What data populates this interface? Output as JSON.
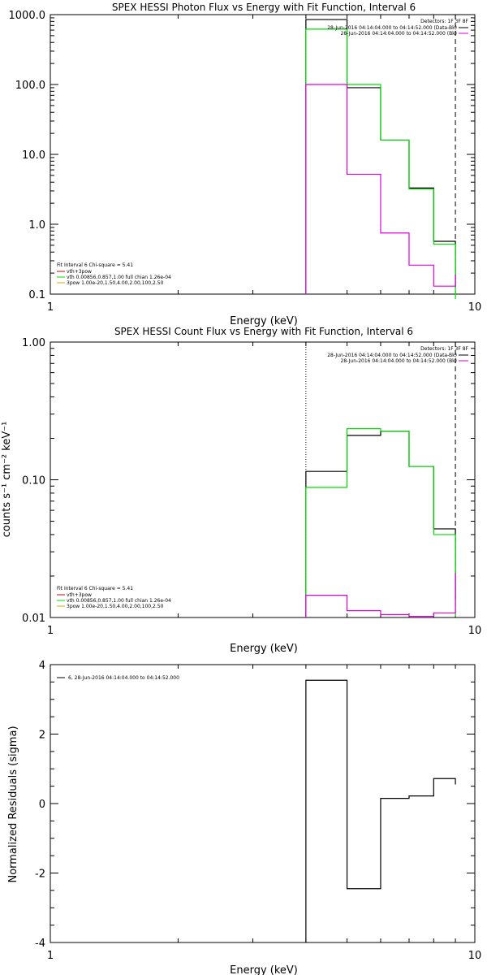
{
  "chart_data": [
    {
      "type": "line",
      "title": "SPEX HESSI Photon Flux vs Energy with Fit Function, Interval 6",
      "xlabel": "Energy (keV)",
      "ylabel": "",
      "xscale": "log",
      "yscale": "log",
      "xlim": [
        1,
        10
      ],
      "ylim": [
        0.1,
        1000
      ],
      "xticks": [
        "1",
        "10"
      ],
      "yticks": [
        "0.1",
        "1.0",
        "10.0",
        "100.0",
        "1000.0"
      ],
      "step_edges": [
        4,
        5,
        6,
        7,
        8,
        9
      ],
      "series": [
        {
          "name": "",
          "color": "#000000",
          "values": [
            850,
            90,
            16,
            3.3,
            0.57,
            0.12
          ]
        },
        {
          "name": "vth+3pow",
          "color": "#00dd00",
          "values": [
            620,
            100,
            16,
            3.2,
            0.52,
            0.085
          ]
        },
        {
          "name": "",
          "color": "#dd00dd",
          "values": [
            100,
            5.2,
            0.75,
            0.26,
            0.13,
            0.19
          ]
        }
      ],
      "vlines": [
        {
          "x": 4,
          "style": "dotted"
        },
        {
          "x": 9,
          "style": "dashed"
        }
      ],
      "legend_right": {
        "header": "Detectors: 1F 3F 8F",
        "entries": [
          {
            "text": "28-Jun-2016 04:14:04.000 to 04:14:52.000 (Data-Bk)",
            "color": "#000000"
          },
          {
            "text": "28-Jun-2016 04:14:04.000 to 04:14:52.000 (Bk)",
            "color": "#dd00dd"
          }
        ]
      },
      "legend_left": {
        "header": "Fit Interval  6    Chi-square = 5.41",
        "entries": [
          {
            "text": "vth+3pow",
            "color": "#dd0000"
          },
          {
            "text": "vth 0.00856,0.857,1.00  full chian 1.26e-04",
            "color": "#00dd00"
          },
          {
            "text": "3pow 1.00e-20,1.50,4.00,2.00,100,2.50",
            "color": "#ddaa00"
          }
        ]
      }
    },
    {
      "type": "line",
      "title": "SPEX HESSI Count Flux vs Energy with Fit Function, Interval 6",
      "xlabel": "Energy (keV)",
      "ylabel": "counts s⁻¹ cm⁻² keV⁻¹",
      "xscale": "log",
      "yscale": "log",
      "xlim": [
        1,
        10
      ],
      "ylim": [
        0.01,
        1
      ],
      "xticks": [
        "1",
        "10"
      ],
      "yticks": [
        "0.01",
        "0.10",
        "1.00"
      ],
      "step_edges": [
        4,
        5,
        6,
        7,
        8,
        9
      ],
      "series": [
        {
          "name": "",
          "color": "#000000",
          "values": [
            0.115,
            0.21,
            0.225,
            0.125,
            0.044,
            0.0135
          ]
        },
        {
          "name": "vth+3pow",
          "color": "#00dd00",
          "values": [
            0.088,
            0.235,
            0.225,
            0.125,
            0.04,
            0.0102
          ]
        },
        {
          "name": "",
          "color": "#dd00dd",
          "values": [
            0.0145,
            0.0112,
            0.0105,
            0.0102,
            0.0108,
            0.021
          ]
        }
      ],
      "vlines": [
        {
          "x": 4,
          "style": "dotted"
        },
        {
          "x": 9,
          "style": "dashed"
        }
      ],
      "legend_right": {
        "header": "Detectors: 1F 3F 8F",
        "entries": [
          {
            "text": "28-Jun-2016 04:14:04.000 to 04:14:52.000 (Data-Bk)",
            "color": "#000000"
          },
          {
            "text": "28-Jun-2016 04:14:04.000 to 04:14:52.000 (Bk)",
            "color": "#dd00dd"
          }
        ]
      },
      "legend_left": {
        "header": "Fit Interval  6    Chi-square = 5.41",
        "entries": [
          {
            "text": "vth+3pow",
            "color": "#dd0000"
          },
          {
            "text": "vth 0.00856,0.857,1.00  full chian 1.26e-04",
            "color": "#00dd00"
          },
          {
            "text": "3pow 1.00e-20,1.50,4.00,2.00,100,2.50",
            "color": "#ddaa00"
          }
        ]
      }
    },
    {
      "type": "line",
      "title": "",
      "xlabel": "Energy (keV)",
      "ylabel": "Normalized Residuals (sigma)",
      "xscale": "log",
      "yscale": "linear",
      "xlim": [
        1,
        10
      ],
      "ylim": [
        -4,
        4
      ],
      "xticks": [
        "1",
        "10"
      ],
      "yticks": [
        "-4",
        "-2",
        "0",
        "2",
        "4"
      ],
      "step_edges": [
        4,
        5,
        6,
        7,
        8,
        9
      ],
      "series": [
        {
          "name": "6, 28-Jun-2016 04:14:04.000 to 04:14:52.000",
          "color": "#000000",
          "values": [
            3.55,
            -2.45,
            0.15,
            0.22,
            0.72,
            0.55
          ]
        }
      ],
      "vlines": [],
      "legend_right": null,
      "legend_left": null,
      "legend_top": {
        "entries": [
          {
            "text": "6, 28-Jun-2016 04:14:04.000 to 04:14:52.000",
            "color": "#000000"
          }
        ]
      }
    }
  ]
}
